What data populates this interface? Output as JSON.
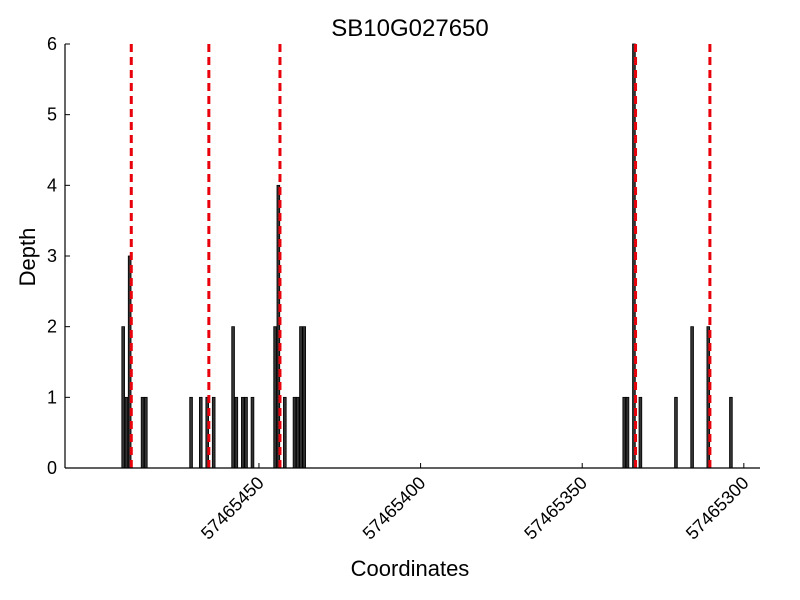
{
  "chart_data": {
    "type": "bar",
    "title": "SB10G027650",
    "xlabel": "Coordinates",
    "ylabel": "Depth",
    "x_reversed": true,
    "xlim": [
      57465510,
      57465295
    ],
    "ylim": [
      0,
      6
    ],
    "x_ticks": [
      57465450,
      57465400,
      57465350,
      57465300
    ],
    "x_tick_labels": [
      "57465450",
      "57465400",
      "57465350",
      "57465300"
    ],
    "y_ticks": [
      0,
      1,
      2,
      3,
      4,
      5,
      6
    ],
    "y_tick_labels": [
      "0",
      "1",
      "2",
      "3",
      "4",
      "5",
      "6"
    ],
    "bar_color": "#333333",
    "bar_edge_color": "#000000",
    "marker_color": "#e8000b",
    "grid": false,
    "bars": [
      {
        "x": 57465492,
        "y": 2
      },
      {
        "x": 57465491,
        "y": 1
      },
      {
        "x": 57465490,
        "y": 3
      },
      {
        "x": 57465486,
        "y": 1
      },
      {
        "x": 57465485,
        "y": 1
      },
      {
        "x": 57465471,
        "y": 1
      },
      {
        "x": 57465468,
        "y": 1
      },
      {
        "x": 57465466,
        "y": 1
      },
      {
        "x": 57465464,
        "y": 1
      },
      {
        "x": 57465458,
        "y": 2
      },
      {
        "x": 57465457,
        "y": 1
      },
      {
        "x": 57465455,
        "y": 1
      },
      {
        "x": 57465454,
        "y": 1
      },
      {
        "x": 57465452,
        "y": 1
      },
      {
        "x": 57465445,
        "y": 2
      },
      {
        "x": 57465444,
        "y": 4
      },
      {
        "x": 57465442,
        "y": 1
      },
      {
        "x": 57465439,
        "y": 1
      },
      {
        "x": 57465438,
        "y": 1
      },
      {
        "x": 57465437,
        "y": 2
      },
      {
        "x": 57465436,
        "y": 2
      },
      {
        "x": 57465337,
        "y": 1
      },
      {
        "x": 57465336,
        "y": 1
      },
      {
        "x": 57465334,
        "y": 6
      },
      {
        "x": 57465332,
        "y": 1
      },
      {
        "x": 57465321,
        "y": 1
      },
      {
        "x": 57465316,
        "y": 2
      },
      {
        "x": 57465311,
        "y": 2
      },
      {
        "x": 57465304,
        "y": 1
      }
    ],
    "vertical_markers": [
      57465489.5,
      57465465.5,
      57465443.5,
      57465333.5,
      57465310.5
    ]
  }
}
